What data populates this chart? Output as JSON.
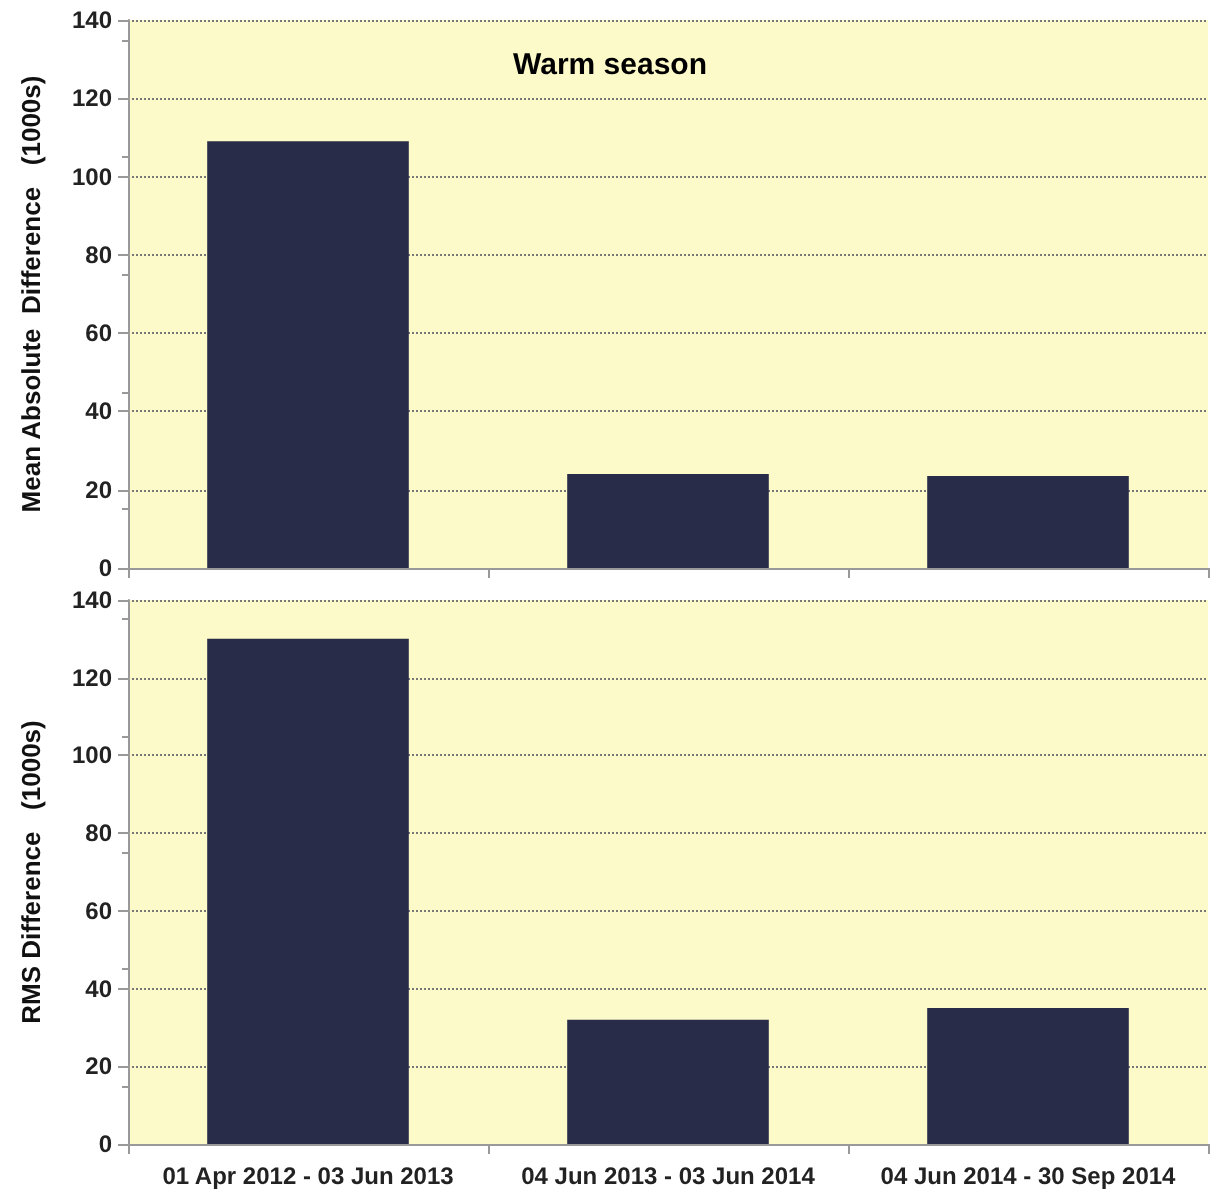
{
  "chart_data": [
    {
      "type": "bar",
      "title": "Warm season",
      "ylabel": "Mean Absolute  Difference   (1000s)",
      "categories": [
        null,
        null,
        null
      ],
      "values": [
        109,
        24,
        23.5
      ],
      "color": "#292c48",
      "ylim": [
        0,
        140
      ],
      "yticks": [
        0,
        20,
        40,
        60,
        80,
        100,
        120,
        140
      ],
      "grid": "y",
      "tick_labels": "y"
    },
    {
      "type": "bar",
      "ylabel": "RMS Difference   (1000s)",
      "categories": [
        "01 Apr 2012 - 03 Jun 2013",
        "04 Jun 2013 - 03 Jun 2014",
        "04 Jun 2014 - 30 Sep 2014"
      ],
      "values": [
        130,
        32,
        35
      ],
      "color": "#292c48",
      "ylim": [
        0,
        140
      ],
      "yticks": [
        0,
        20,
        40,
        60,
        80,
        100,
        120,
        140
      ],
      "grid": "y"
    }
  ]
}
